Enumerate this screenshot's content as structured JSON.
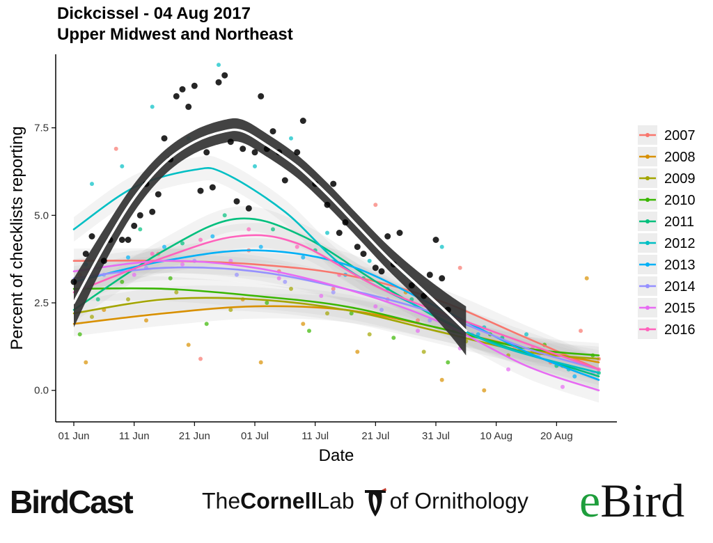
{
  "chart_data": {
    "type": "scatter",
    "title": "Dickcissel - 04 Aug 2017",
    "subtitle": "Upper Midwest and Northeast",
    "xlabel": "Date",
    "ylabel": "Percent of checklists reporting",
    "xlim": [
      "2017-05-29",
      "2017-08-30"
    ],
    "ylim": [
      -0.9,
      9.6
    ],
    "x_ticks": [
      "2017-06-01",
      "2017-06-11",
      "2017-06-21",
      "2017-07-01",
      "2017-07-11",
      "2017-07-21",
      "2017-07-31",
      "2017-08-10",
      "2017-08-20"
    ],
    "x_tick_labels": [
      "01 Jun",
      "11 Jun",
      "21 Jun",
      "01 Jul",
      "11 Jul",
      "21 Jul",
      "31 Jul",
      "10 Aug",
      "20 Aug"
    ],
    "y_ticks": [
      0.0,
      2.5,
      5.0,
      7.5
    ],
    "y_tick_labels": [
      "0.0",
      "2.5",
      "5.0",
      "7.5"
    ],
    "grid": false,
    "legend_position": "right",
    "current_year": {
      "color": "#000000",
      "band_color": "#333333",
      "points": [
        [
          "2017-06-01",
          3.1
        ],
        [
          "2017-06-03",
          3.9
        ],
        [
          "2017-06-04",
          4.4
        ],
        [
          "2017-06-06",
          3.7
        ],
        [
          "2017-06-07",
          4.3
        ],
        [
          "2017-06-09",
          4.3
        ],
        [
          "2017-06-10",
          4.3
        ],
        [
          "2017-06-11",
          4.7
        ],
        [
          "2017-06-12",
          5.0
        ],
        [
          "2017-06-13",
          5.9
        ],
        [
          "2017-06-14",
          5.1
        ],
        [
          "2017-06-15",
          5.6
        ],
        [
          "2017-06-16",
          7.2
        ],
        [
          "2017-06-17",
          6.6
        ],
        [
          "2017-06-18",
          8.4
        ],
        [
          "2017-06-19",
          8.6
        ],
        [
          "2017-06-20",
          8.1
        ],
        [
          "2017-06-21",
          8.7
        ],
        [
          "2017-06-22",
          5.7
        ],
        [
          "2017-06-23",
          6.8
        ],
        [
          "2017-06-24",
          5.8
        ],
        [
          "2017-06-25",
          8.8
        ],
        [
          "2017-06-26",
          9.0
        ],
        [
          "2017-06-27",
          7.1
        ],
        [
          "2017-06-28",
          5.4
        ],
        [
          "2017-06-29",
          6.9
        ],
        [
          "2017-06-30",
          5.2
        ],
        [
          "2017-07-01",
          6.8
        ],
        [
          "2017-07-02",
          8.4
        ],
        [
          "2017-07-03",
          6.9
        ],
        [
          "2017-07-04",
          7.4
        ],
        [
          "2017-07-05",
          6.8
        ],
        [
          "2017-07-06",
          6.0
        ],
        [
          "2017-07-08",
          6.8
        ],
        [
          "2017-07-09",
          7.7
        ],
        [
          "2017-07-11",
          5.9
        ],
        [
          "2017-07-13",
          5.3
        ],
        [
          "2017-07-14",
          5.9
        ],
        [
          "2017-07-15",
          4.5
        ],
        [
          "2017-07-16",
          4.8
        ],
        [
          "2017-07-18",
          4.1
        ],
        [
          "2017-07-19",
          3.9
        ],
        [
          "2017-07-21",
          3.5
        ],
        [
          "2017-07-22",
          3.4
        ],
        [
          "2017-07-23",
          4.4
        ],
        [
          "2017-07-24",
          3.6
        ],
        [
          "2017-07-25",
          4.5
        ],
        [
          "2017-07-27",
          3.0
        ],
        [
          "2017-07-29",
          2.7
        ],
        [
          "2017-07-30",
          3.3
        ],
        [
          "2017-07-31",
          4.3
        ],
        [
          "2017-08-01",
          3.2
        ],
        [
          "2017-08-02",
          2.3
        ]
      ],
      "smooth": [
        [
          "2017-06-01",
          2.5
        ],
        [
          "2017-06-06",
          4.1
        ],
        [
          "2017-06-11",
          5.5
        ],
        [
          "2017-06-16",
          6.5
        ],
        [
          "2017-06-21",
          7.1
        ],
        [
          "2017-06-26",
          7.4
        ],
        [
          "2017-06-29",
          7.4
        ],
        [
          "2017-07-03",
          7.0
        ],
        [
          "2017-07-08",
          6.4
        ],
        [
          "2017-07-13",
          5.6
        ],
        [
          "2017-07-18",
          4.7
        ],
        [
          "2017-07-23",
          3.8
        ],
        [
          "2017-07-28",
          3.0
        ],
        [
          "2017-08-02",
          2.2
        ],
        [
          "2017-08-05",
          1.7
        ]
      ],
      "band_halfwidth": [
        0.7,
        0.5,
        0.4,
        0.35,
        0.33,
        0.33,
        0.33,
        0.33,
        0.33,
        0.33,
        0.33,
        0.35,
        0.4,
        0.55,
        0.7
      ]
    },
    "series": [
      {
        "name": "2007",
        "color": "#F8766D",
        "smooth": [
          [
            "2017-06-01",
            3.7
          ],
          [
            "2017-06-16",
            3.7
          ],
          [
            "2017-07-01",
            3.6
          ],
          [
            "2017-07-16",
            3.3
          ],
          [
            "2017-07-31",
            2.6
          ],
          [
            "2017-08-15",
            1.5
          ],
          [
            "2017-08-27",
            0.6
          ]
        ]
      },
      {
        "name": "2008",
        "color": "#D89000",
        "smooth": [
          [
            "2017-06-01",
            1.9
          ],
          [
            "2017-06-16",
            2.2
          ],
          [
            "2017-07-01",
            2.4
          ],
          [
            "2017-07-16",
            2.3
          ],
          [
            "2017-07-31",
            1.8
          ],
          [
            "2017-08-15",
            1.2
          ],
          [
            "2017-08-27",
            0.8
          ]
        ]
      },
      {
        "name": "2009",
        "color": "#A3A500",
        "smooth": [
          [
            "2017-06-01",
            2.2
          ],
          [
            "2017-06-16",
            2.6
          ],
          [
            "2017-07-01",
            2.6
          ],
          [
            "2017-07-16",
            2.3
          ],
          [
            "2017-07-31",
            1.7
          ],
          [
            "2017-08-15",
            1.1
          ],
          [
            "2017-08-27",
            0.9
          ]
        ]
      },
      {
        "name": "2010",
        "color": "#39B600",
        "smooth": [
          [
            "2017-06-01",
            2.9
          ],
          [
            "2017-06-16",
            2.9
          ],
          [
            "2017-07-01",
            2.7
          ],
          [
            "2017-07-16",
            2.4
          ],
          [
            "2017-07-31",
            1.8
          ],
          [
            "2017-08-15",
            1.2
          ],
          [
            "2017-08-27",
            1.0
          ]
        ]
      },
      {
        "name": "2011",
        "color": "#00BF7D",
        "smooth": [
          [
            "2017-06-01",
            2.3
          ],
          [
            "2017-06-16",
            4.0
          ],
          [
            "2017-06-28",
            4.9
          ],
          [
            "2017-07-09",
            4.4
          ],
          [
            "2017-07-23",
            2.9
          ],
          [
            "2017-08-06",
            1.6
          ],
          [
            "2017-08-27",
            0.4
          ]
        ]
      },
      {
        "name": "2012",
        "color": "#00BFC4",
        "smooth": [
          [
            "2017-06-01",
            4.6
          ],
          [
            "2017-06-11",
            5.8
          ],
          [
            "2017-06-21",
            6.3
          ],
          [
            "2017-06-26",
            6.2
          ],
          [
            "2017-07-06",
            5.1
          ],
          [
            "2017-07-16",
            3.5
          ],
          [
            "2017-07-28",
            2.4
          ],
          [
            "2017-08-10",
            1.3
          ],
          [
            "2017-08-27",
            0.5
          ]
        ]
      },
      {
        "name": "2013",
        "color": "#00B0F6",
        "smooth": [
          [
            "2017-06-01",
            3.1
          ],
          [
            "2017-06-16",
            3.7
          ],
          [
            "2017-07-01",
            4.0
          ],
          [
            "2017-07-16",
            3.6
          ],
          [
            "2017-07-31",
            2.4
          ],
          [
            "2017-08-15",
            1.1
          ],
          [
            "2017-08-27",
            0.3
          ]
        ]
      },
      {
        "name": "2014",
        "color": "#9590FF",
        "smooth": [
          [
            "2017-06-01",
            3.2
          ],
          [
            "2017-06-16",
            3.5
          ],
          [
            "2017-07-01",
            3.4
          ],
          [
            "2017-07-16",
            2.9
          ],
          [
            "2017-07-31",
            2.2
          ],
          [
            "2017-08-15",
            1.2
          ],
          [
            "2017-08-27",
            0.6
          ]
        ]
      },
      {
        "name": "2015",
        "color": "#E76BF3",
        "smooth": [
          [
            "2017-06-01",
            3.4
          ],
          [
            "2017-06-16",
            3.7
          ],
          [
            "2017-07-01",
            3.5
          ],
          [
            "2017-07-16",
            2.9
          ],
          [
            "2017-07-31",
            2.0
          ],
          [
            "2017-08-15",
            0.7
          ],
          [
            "2017-08-27",
            0.0
          ]
        ]
      },
      {
        "name": "2016",
        "color": "#FF62BC",
        "smooth": [
          [
            "2017-06-01",
            2.8
          ],
          [
            "2017-06-16",
            3.8
          ],
          [
            "2017-06-28",
            4.4
          ],
          [
            "2017-07-08",
            4.2
          ],
          [
            "2017-07-22",
            2.9
          ],
          [
            "2017-08-06",
            1.9
          ],
          [
            "2017-08-27",
            0.6
          ]
        ]
      }
    ],
    "scatter_note_points": {
      "2007": [
        [
          "2017-06-02",
          3.3
        ],
        [
          "2017-06-08",
          6.9
        ],
        [
          "2017-06-15",
          3.9
        ],
        [
          "2017-06-22",
          0.9
        ],
        [
          "2017-06-30",
          4.0
        ],
        [
          "2017-07-05",
          3.4
        ],
        [
          "2017-07-14",
          2.9
        ],
        [
          "2017-07-21",
          5.3
        ],
        [
          "2017-07-28",
          2.0
        ],
        [
          "2017-08-04",
          3.5
        ],
        [
          "2017-08-13",
          1.2
        ],
        [
          "2017-08-19",
          0.8
        ],
        [
          "2017-08-24",
          1.7
        ],
        [
          "2017-08-27",
          0.9
        ]
      ],
      "2008": [
        [
          "2017-06-03",
          0.8
        ],
        [
          "2017-06-06",
          2.3
        ],
        [
          "2017-06-13",
          2.0
        ],
        [
          "2017-06-20",
          1.3
        ],
        [
          "2017-06-29",
          2.6
        ],
        [
          "2017-07-02",
          0.8
        ],
        [
          "2017-07-09",
          1.9
        ],
        [
          "2017-07-18",
          1.1
        ],
        [
          "2017-07-26",
          2.8
        ],
        [
          "2017-08-01",
          0.3
        ],
        [
          "2017-08-08",
          0.0
        ],
        [
          "2017-08-16",
          1.1
        ],
        [
          "2017-08-25",
          3.2
        ]
      ],
      "2009": [
        [
          "2017-06-04",
          2.1
        ],
        [
          "2017-06-10",
          2.6
        ],
        [
          "2017-06-18",
          2.8
        ],
        [
          "2017-06-27",
          2.3
        ],
        [
          "2017-07-07",
          2.9
        ],
        [
          "2017-07-13",
          2.2
        ],
        [
          "2017-07-20",
          1.6
        ],
        [
          "2017-07-29",
          1.1
        ],
        [
          "2017-08-05",
          1.4
        ],
        [
          "2017-08-12",
          1.0
        ],
        [
          "2017-08-21",
          0.7
        ]
      ],
      "2010": [
        [
          "2017-06-02",
          1.6
        ],
        [
          "2017-06-09",
          3.1
        ],
        [
          "2017-06-17",
          3.2
        ],
        [
          "2017-06-23",
          1.9
        ],
        [
          "2017-07-03",
          2.5
        ],
        [
          "2017-07-10",
          1.7
        ],
        [
          "2017-07-17",
          2.2
        ],
        [
          "2017-07-24",
          1.5
        ],
        [
          "2017-08-02",
          0.8
        ],
        [
          "2017-08-09",
          1.6
        ],
        [
          "2017-08-18",
          1.3
        ],
        [
          "2017-08-26",
          1.0
        ]
      ],
      "2011": [
        [
          "2017-06-05",
          2.6
        ],
        [
          "2017-06-12",
          4.6
        ],
        [
          "2017-06-19",
          4.2
        ],
        [
          "2017-06-26",
          5.0
        ],
        [
          "2017-07-04",
          4.6
        ],
        [
          "2017-07-11",
          4.0
        ],
        [
          "2017-07-19",
          3.2
        ],
        [
          "2017-07-27",
          2.6
        ],
        [
          "2017-08-03",
          1.7
        ],
        [
          "2017-08-11",
          1.5
        ],
        [
          "2017-08-20",
          0.7
        ],
        [
          "2017-08-27",
          0.5
        ]
      ],
      "2012": [
        [
          "2017-06-04",
          5.9
        ],
        [
          "2017-06-09",
          6.4
        ],
        [
          "2017-06-14",
          8.1
        ],
        [
          "2017-06-20",
          7.2
        ],
        [
          "2017-06-25",
          9.3
        ],
        [
          "2017-07-01",
          6.4
        ],
        [
          "2017-07-07",
          7.2
        ],
        [
          "2017-07-13",
          4.5
        ],
        [
          "2017-07-20",
          3.7
        ],
        [
          "2017-07-26",
          3.3
        ],
        [
          "2017-08-01",
          4.1
        ],
        [
          "2017-08-08",
          1.8
        ],
        [
          "2017-08-15",
          1.6
        ],
        [
          "2017-08-22",
          0.6
        ]
      ],
      "2013": [
        [
          "2017-06-03",
          3.6
        ],
        [
          "2017-06-10",
          3.8
        ],
        [
          "2017-06-16",
          4.1
        ],
        [
          "2017-06-24",
          4.4
        ],
        [
          "2017-07-02",
          4.1
        ],
        [
          "2017-07-09",
          3.8
        ],
        [
          "2017-07-16",
          3.3
        ],
        [
          "2017-07-23",
          2.9
        ],
        [
          "2017-07-30",
          2.3
        ],
        [
          "2017-08-07",
          1.6
        ],
        [
          "2017-08-14",
          1.2
        ],
        [
          "2017-08-23",
          0.4
        ]
      ],
      "2014": [
        [
          "2017-06-06",
          3.3
        ],
        [
          "2017-06-13",
          3.5
        ],
        [
          "2017-06-21",
          3.7
        ],
        [
          "2017-06-28",
          3.3
        ],
        [
          "2017-07-06",
          3.1
        ],
        [
          "2017-07-14",
          2.8
        ],
        [
          "2017-07-22",
          2.3
        ],
        [
          "2017-07-30",
          2.0
        ],
        [
          "2017-08-06",
          1.6
        ],
        [
          "2017-08-17",
          1.0
        ],
        [
          "2017-08-26",
          0.5
        ]
      ],
      "2015": [
        [
          "2017-06-02",
          3.1
        ],
        [
          "2017-06-11",
          3.3
        ],
        [
          "2017-06-19",
          3.6
        ],
        [
          "2017-06-27",
          3.7
        ],
        [
          "2017-07-05",
          3.2
        ],
        [
          "2017-07-12",
          2.7
        ],
        [
          "2017-07-21",
          2.4
        ],
        [
          "2017-07-28",
          1.7
        ],
        [
          "2017-08-04",
          1.2
        ],
        [
          "2017-08-12",
          0.6
        ],
        [
          "2017-08-21",
          0.1
        ]
      ],
      "2016": [
        [
          "2017-06-05",
          3.3
        ],
        [
          "2017-06-14",
          3.9
        ],
        [
          "2017-06-22",
          4.3
        ],
        [
          "2017-06-30",
          4.6
        ],
        [
          "2017-07-08",
          4.1
        ],
        [
          "2017-07-15",
          3.3
        ],
        [
          "2017-07-23",
          2.6
        ],
        [
          "2017-07-31",
          2.1
        ],
        [
          "2017-08-07",
          1.8
        ],
        [
          "2017-08-16",
          1.2
        ],
        [
          "2017-08-27",
          0.6
        ]
      ]
    }
  },
  "footer": {
    "birdcast": "BirdCast",
    "cornell_the": "The",
    "cornell_name": "Cornell",
    "cornell_lab": "Lab",
    "cornell_of": "of Ornithology",
    "ebird_e": "e",
    "ebird_bird": "Bird"
  }
}
